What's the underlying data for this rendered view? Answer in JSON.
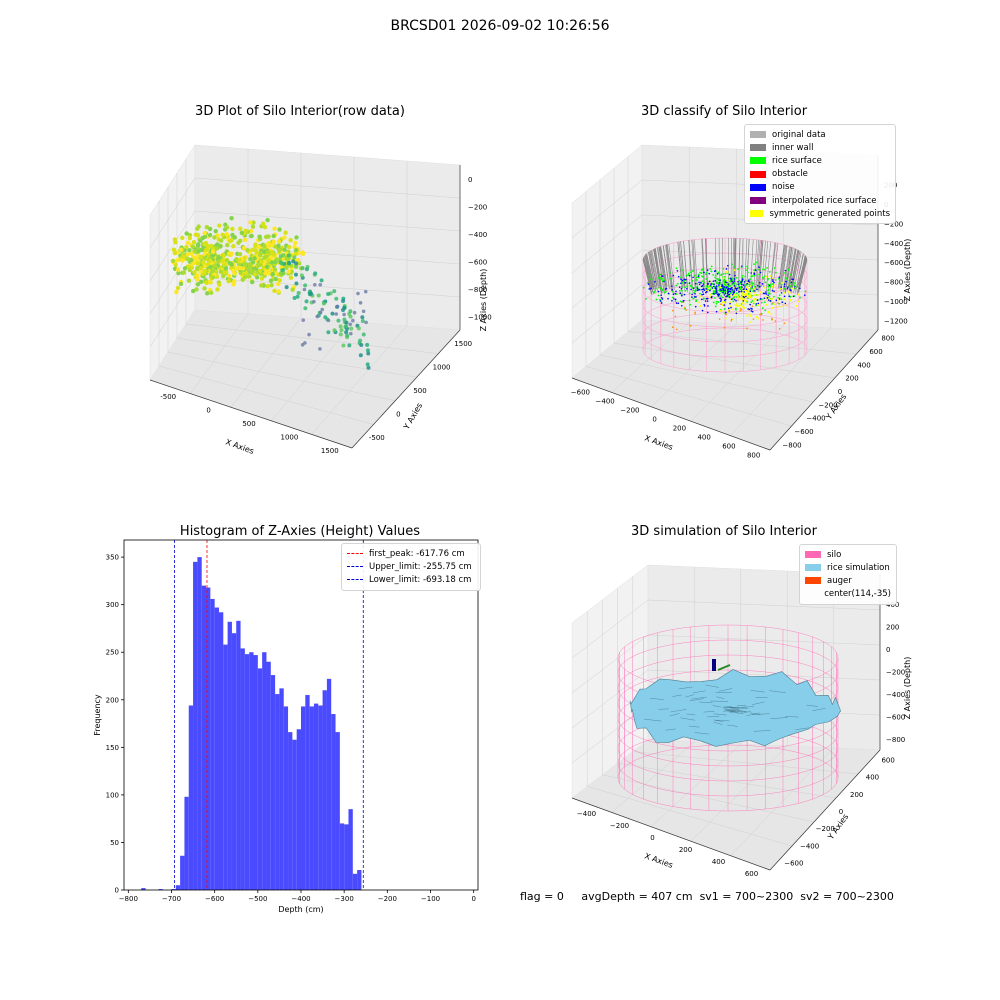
{
  "suptitle": "BRCSD01 2026-09-02 10:26:56",
  "footer": {
    "flag": "flag = 0",
    "avg_depth": "avgDepth = 407 cm",
    "sv1": "sv1 = 700~2300",
    "sv2": "sv2 = 700~2300"
  },
  "chart_data": [
    {
      "type": "scatter",
      "projection": "3d",
      "title": "3D Plot of Silo Interior(row data)",
      "xlabel": "X Axies",
      "ylabel": "Y Axies",
      "zlabel": "Z Axies (Depth)",
      "x_ticks": [
        "-500",
        "0",
        "500",
        "1000",
        "1500"
      ],
      "y_ticks": [
        "-500",
        "0",
        "500",
        "1000",
        "1500"
      ],
      "z_ticks": [
        "0",
        "−200",
        "−400",
        "−600",
        "−800",
        "−1000"
      ],
      "colormap": "viridis"
    },
    {
      "type": "scatter",
      "projection": "3d",
      "title": "3D classify of Silo Interior",
      "xlabel": "X Axies",
      "ylabel": "Y Axies",
      "zlabel": "Z Axies (Depth)",
      "x_ticks": [
        "−600",
        "−400",
        "−200",
        "0",
        "200",
        "400",
        "600",
        "800"
      ],
      "y_ticks": [
        "−800",
        "−600",
        "−400",
        "−200",
        "0",
        "200",
        "400",
        "600",
        "800"
      ],
      "z_ticks": [
        "200",
        "0",
        "−200",
        "−400",
        "−600",
        "−800",
        "−1000",
        "−1200"
      ],
      "legend": [
        {
          "name": "original data",
          "color": "#b0b0b0"
        },
        {
          "name": "inner wall",
          "color": "#808080"
        },
        {
          "name": "rice surface",
          "color": "#00ff00"
        },
        {
          "name": "obstacle",
          "color": "#ff0000"
        },
        {
          "name": "noise",
          "color": "#0000ff"
        },
        {
          "name": "interpolated rice surface",
          "color": "#800080"
        },
        {
          "name": "symmetric generated points",
          "color": "#ffff00"
        }
      ],
      "legend_position": "top-right"
    },
    {
      "type": "bar",
      "title": "Histogram of Z-Axies (Height) Values",
      "xlabel": "Depth (cm)",
      "ylabel": "Frequency",
      "xlim": [
        -810,
        10
      ],
      "ylim": [
        0,
        368
      ],
      "bin_width": 10,
      "bin_start": -770,
      "values": [
        2,
        0,
        0,
        0,
        1,
        0,
        0,
        1,
        5,
        36,
        98,
        194,
        345,
        350,
        320,
        318,
        306,
        297,
        292,
        258,
        282,
        270,
        283,
        254,
        248,
        250,
        247,
        233,
        250,
        240,
        226,
        206,
        212,
        193,
        166,
        158,
        169,
        193,
        205,
        193,
        196,
        194,
        210,
        222,
        185,
        166,
        70,
        69,
        85,
        17,
        21
      ],
      "lines": [
        {
          "name": "first_peak: -617.76 cm",
          "x": -617.76,
          "color": "#ff0000"
        },
        {
          "name": "Upper_limit: -255.75 cm",
          "x": -255.75,
          "color": "#0000cc"
        },
        {
          "name": "Lower_limit: -693.18 cm",
          "x": -693.18,
          "color": "#0000cc"
        }
      ],
      "x_ticks": [
        -800,
        -700,
        -600,
        -500,
        -400,
        -300,
        -200,
        -100,
        0
      ],
      "y_ticks": [
        0,
        50,
        100,
        150,
        200,
        250,
        300,
        350
      ],
      "bar_color": "#4a4aff",
      "legend_position": "top-right"
    },
    {
      "type": "surface",
      "projection": "3d",
      "title": "3D simulation of Silo Interior",
      "xlabel": "X Axies",
      "ylabel": "Y Axies",
      "zlabel": "Z Axies (Depth)",
      "x_ticks": [
        "−400",
        "−200",
        "0",
        "200",
        "400",
        "600"
      ],
      "y_ticks": [
        "−600",
        "−400",
        "−200",
        "0",
        "200",
        "400",
        "600"
      ],
      "z_ticks": [
        "400",
        "200",
        "0",
        "−200",
        "−400",
        "−600",
        "−800"
      ],
      "legend": [
        {
          "name": "silo",
          "color": "#ff69b4"
        },
        {
          "name": "rice simulation",
          "color": "#87ceeb"
        },
        {
          "name": "auger",
          "color": "#ff4500"
        },
        {
          "name": "center(114,-35)",
          "color": ""
        }
      ],
      "legend_position": "top-right"
    }
  ]
}
